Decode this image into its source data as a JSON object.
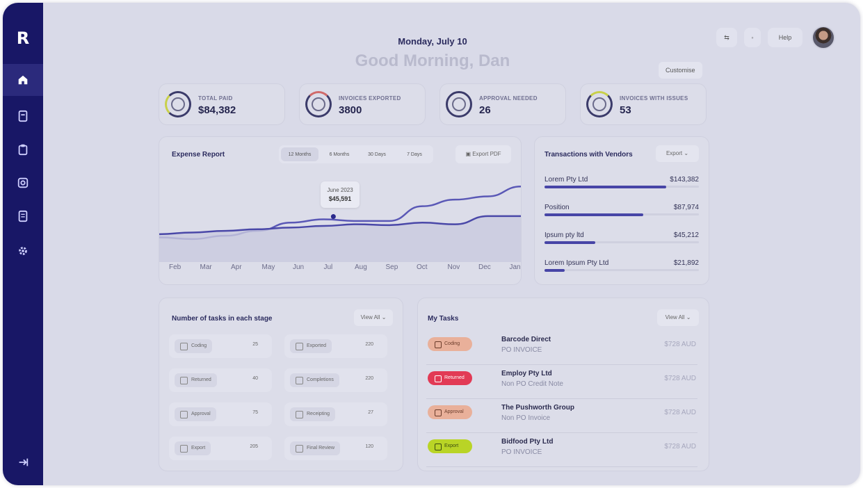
{
  "brand": {
    "logo": "R"
  },
  "sidebar": {
    "items": [
      {
        "icon": "home-icon",
        "active": true
      },
      {
        "icon": "document-icon"
      },
      {
        "icon": "clipboard-icon"
      },
      {
        "icon": "image-icon"
      },
      {
        "icon": "report-icon"
      },
      {
        "icon": "gear-icon"
      }
    ],
    "logout_icon": "logout-icon"
  },
  "header": {
    "date": "Monday, July 10",
    "greeting": "Good Morning, Dan",
    "customise": "Customise",
    "help": "Help"
  },
  "stats": [
    {
      "label": "TOTAL PAID",
      "value": "$84,382"
    },
    {
      "label": "INVOICES EXPORTED",
      "value": "3800"
    },
    {
      "label": "APPROVAL NEEDED",
      "value": "26"
    },
    {
      "label": "INVOICES WITH ISSUES",
      "value": "53"
    }
  ],
  "expense": {
    "title": "Expense Report",
    "ranges": [
      "12 Months",
      "6 Months",
      "30 Days",
      "7 Days"
    ],
    "export": "Export PDF",
    "tooltip": {
      "label": "June 2023",
      "value": "$45,591"
    }
  },
  "chart_data": {
    "type": "line",
    "x": [
      "Feb",
      "Mar",
      "Apr",
      "May",
      "Jun",
      "Jul",
      "Aug",
      "Sep",
      "Oct",
      "Nov",
      "Dec",
      "Jan"
    ],
    "series": [
      {
        "values": [
          30,
          28,
          32,
          38,
          48,
          52,
          50,
          50,
          68,
          76,
          80,
          92
        ]
      },
      {
        "values": [
          34,
          36,
          38,
          40,
          42,
          44,
          46,
          45,
          48,
          46,
          56,
          56
        ]
      }
    ],
    "ylim": [
      0,
      110
    ]
  },
  "vendors": {
    "title": "Transactions with Vendors",
    "sort": "Export",
    "items": [
      {
        "name": "Lorem Pty Ltd",
        "value": "$143,382",
        "fill": 0.79
      },
      {
        "name": "Position",
        "value": "$87,974",
        "fill": 0.64
      },
      {
        "name": "Ipsum pty ltd",
        "value": "$45,212",
        "fill": 0.33
      },
      {
        "name": "Lorem Ipsum Pty Ltd",
        "value": "$21,892",
        "fill": 0.13
      }
    ]
  },
  "stages": {
    "title": "Number of tasks in each stage",
    "view_all": "View All",
    "items": [
      {
        "label": "Coding",
        "count": "25"
      },
      {
        "label": "Exported",
        "count": "220"
      },
      {
        "label": "Returned",
        "count": "40"
      },
      {
        "label": "Completions",
        "count": "220"
      },
      {
        "label": "Approval",
        "count": "75"
      },
      {
        "label": "Receipting",
        "count": "27"
      },
      {
        "label": "Export",
        "count": "205"
      },
      {
        "label": "Final Review",
        "count": "120"
      }
    ]
  },
  "tasks": {
    "title": "My Tasks",
    "view_all": "View All",
    "items": [
      {
        "badge": "Coding",
        "color": "#e9b09a",
        "name": "Barcode Direct",
        "sub": "PO INVOICE",
        "amount": "$728 AUD"
      },
      {
        "badge": "Returned",
        "color": "#e23a55",
        "name": "Employ Pty Ltd",
        "sub": "Non PO Credit Note",
        "amount": "$728 AUD"
      },
      {
        "badge": "Approval",
        "color": "#e9b09a",
        "name": "The Pushworth Group",
        "sub": "Non PO Invoice",
        "amount": "$728 AUD"
      },
      {
        "badge": "Export",
        "color": "#b9d426",
        "name": "Bidfood Pty Ltd",
        "sub": "PO INVOICE",
        "amount": "$728 AUD"
      }
    ]
  }
}
